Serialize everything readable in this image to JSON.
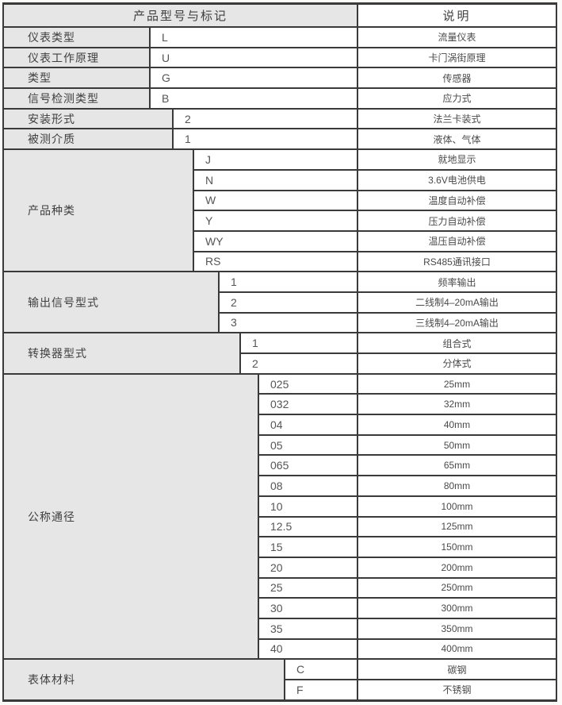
{
  "header": {
    "model_col": "产品型号与标记",
    "desc_col": "说明"
  },
  "sections": [
    {
      "label": "仪表类型",
      "level": 0,
      "rows": [
        {
          "code": "L",
          "desc": "流量仪表"
        }
      ]
    },
    {
      "label": "仪表工作原理",
      "level": 0,
      "rows": [
        {
          "code": "U",
          "desc": "卡门涡街原理"
        }
      ]
    },
    {
      "label": "类型",
      "level": 0,
      "rows": [
        {
          "code": "G",
          "desc": "传感器"
        }
      ]
    },
    {
      "label": "信号检测类型",
      "level": 0,
      "rows": [
        {
          "code": "B",
          "desc": "应力式"
        }
      ]
    },
    {
      "label": "安装形式",
      "level": 1,
      "rows": [
        {
          "code": "2",
          "desc": "法兰卡装式"
        }
      ]
    },
    {
      "label": "被测介质",
      "level": 1,
      "rows": [
        {
          "code": "1",
          "desc": "液体、气体"
        }
      ]
    },
    {
      "label": "产品种类",
      "level": 2,
      "rows": [
        {
          "code": "J",
          "desc": "就地显示"
        },
        {
          "code": "N",
          "desc": "3.6V电池供电"
        },
        {
          "code": "W",
          "desc": "温度自动补偿"
        },
        {
          "code": "Y",
          "desc": "压力自动补偿"
        },
        {
          "code": "WY",
          "desc": "温压自动补偿"
        },
        {
          "code": "RS",
          "desc": "RS485通讯接口"
        }
      ]
    },
    {
      "label": "输出信号型式",
      "level": 3,
      "rows": [
        {
          "code": "1",
          "desc": "频率输出"
        },
        {
          "code": "2",
          "desc": "二线制4–20mA输出"
        },
        {
          "code": "3",
          "desc": "三线制4–20mA输出"
        }
      ]
    },
    {
      "label": "转换器型式",
      "level": 4,
      "rows": [
        {
          "code": "1",
          "desc": "组合式"
        },
        {
          "code": "2",
          "desc": "分体式"
        }
      ]
    },
    {
      "label": "公称通径",
      "level": 5,
      "rows": [
        {
          "code": "025",
          "desc": "25mm"
        },
        {
          "code": "032",
          "desc": "32mm"
        },
        {
          "code": "04",
          "desc": "40mm"
        },
        {
          "code": "05",
          "desc": "50mm"
        },
        {
          "code": "065",
          "desc": "65mm"
        },
        {
          "code": "08",
          "desc": "80mm"
        },
        {
          "code": "10",
          "desc": "100mm"
        },
        {
          "code": "12.5",
          "desc": "125mm"
        },
        {
          "code": "15",
          "desc": "150mm"
        },
        {
          "code": "20",
          "desc": "200mm"
        },
        {
          "code": "25",
          "desc": "250mm"
        },
        {
          "code": "30",
          "desc": "300mm"
        },
        {
          "code": "35",
          "desc": "350mm"
        },
        {
          "code": "40",
          "desc": "400mm"
        }
      ]
    },
    {
      "label": "表体材料",
      "level": 6,
      "rows": [
        {
          "code": "C",
          "desc": "碳钢"
        },
        {
          "code": "F",
          "desc": "不锈钢"
        }
      ]
    }
  ],
  "colors": {
    "label_bg": "#e6e6e6",
    "border": "#3a3a3a",
    "text": "#4a4a4a"
  }
}
